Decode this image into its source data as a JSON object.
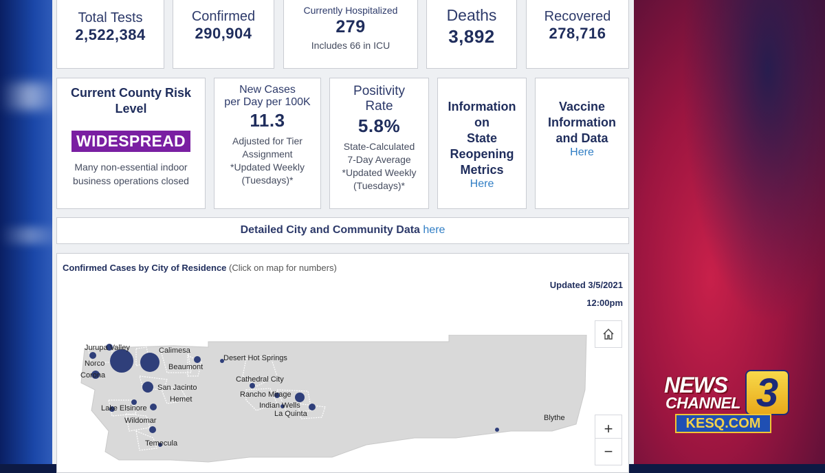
{
  "stats": {
    "total_tests": {
      "label": "Total Tests",
      "value": "2,522,384"
    },
    "confirmed": {
      "label": "Confirmed",
      "value": "290,904"
    },
    "hospitalized": {
      "label": "Currently Hospitalized",
      "value": "279",
      "note": "Includes 66 in ICU"
    },
    "deaths": {
      "label": "Deaths",
      "value": "3,892"
    },
    "recovered": {
      "label": "Recovered",
      "value": "278,716"
    }
  },
  "risk": {
    "title_line1": "Current County Risk",
    "title_line2": "Level",
    "badge": "WIDESPREAD",
    "desc_line1": "Many non-essential indoor",
    "desc_line2": "business operations closed",
    "badge_color": "#7a1fa2"
  },
  "new_cases": {
    "label_line1": "New Cases",
    "label_line2": "per Day per 100K",
    "value": "11.3",
    "note_line1": "Adjusted for Tier",
    "note_line2": "Assignment",
    "note_line3": "*Updated Weekly",
    "note_line4": "(Tuesdays)*"
  },
  "positivity": {
    "label_line1": "Positivity",
    "label_line2": "Rate",
    "value": "5.8%",
    "note_line1": "State-Calculated",
    "note_line2": "7-Day Average",
    "note_line3": "*Updated Weekly",
    "note_line4": "(Tuesdays)*"
  },
  "reopening": {
    "line1": "Information",
    "line2": "on",
    "line3": "State",
    "line4": "Reopening",
    "line5": "Metrics",
    "link": "Here"
  },
  "vaccine": {
    "line1": "Vaccine",
    "line2": "Information",
    "line3": "and Data",
    "link": "Here"
  },
  "city_data": {
    "text": "Detailed City and Community Data",
    "link": "here"
  },
  "map": {
    "title": "Confirmed Cases by City of Residence",
    "title_note": "(Click on map for numbers)",
    "updated_line1": "Updated 3/5/2021",
    "updated_line2": "12:00pm",
    "home_icon": "home-icon",
    "zoom_in": "+",
    "zoom_out": "−",
    "cities": [
      "Jurupa Valley",
      "Norco",
      "Corona",
      "Calimesa",
      "Beaumont",
      "San Jacinto",
      "Hemet",
      "Lake Elsinore",
      "Wildomar",
      "Temecula",
      "Desert Hot Springs",
      "Cathedral City",
      "Rancho Mirage",
      "Indian Wells",
      "La Quinta",
      "Blythe"
    ],
    "marker_color": "#2f3f7a",
    "land_color": "#d9d9d9"
  },
  "logo": {
    "news": "NEWS",
    "channel": "CHANNEL",
    "number": "3",
    "site": "KESQ.COM"
  }
}
